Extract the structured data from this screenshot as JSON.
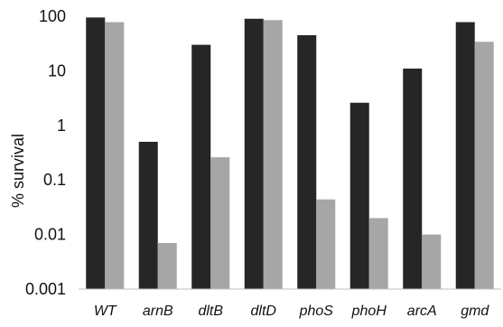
{
  "chart_data": {
    "type": "bar",
    "ylabel": "% survival",
    "yscale": "log",
    "ylim": [
      0.001,
      100
    ],
    "yticks": [
      "100",
      "10",
      "1",
      "0.1",
      "0.01",
      "0.001"
    ],
    "categories": [
      "WT",
      "arnB",
      "dltB",
      "dltD",
      "phoS",
      "phoH",
      "arcA",
      "gmd"
    ],
    "series": [
      {
        "color": "#262626",
        "values": [
          95,
          0.5,
          30,
          90,
          45,
          2.6,
          11,
          78
        ]
      },
      {
        "color": "#a6a6a6",
        "values": [
          78,
          0.007,
          0.26,
          85,
          0.044,
          0.02,
          0.01,
          34
        ]
      }
    ],
    "grid": false,
    "legend": "none"
  }
}
